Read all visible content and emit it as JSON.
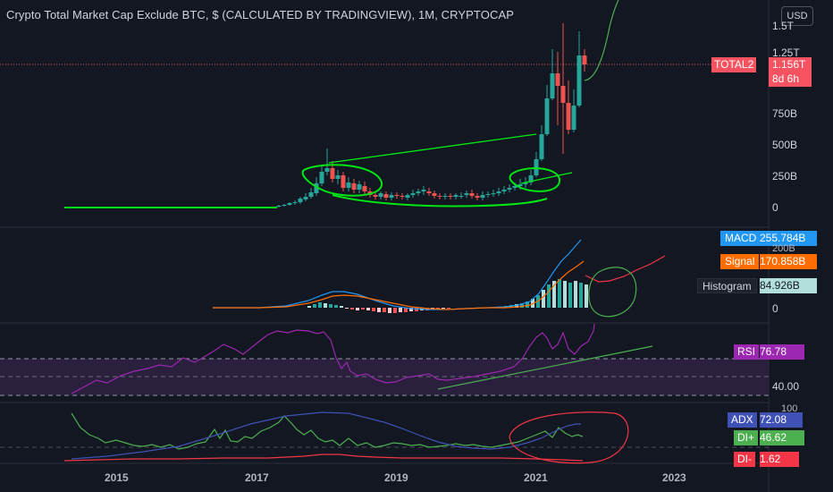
{
  "header": {
    "title": "Crypto Total Market Cap Exclude BTC, $ (CALCULATED BY TRADINGVIEW), 1M, CRYPTOCAP",
    "currency_button": "USD"
  },
  "price_axis": {
    "ticks": [
      "1.5T",
      "1.25T",
      "750B",
      "500B",
      "250B",
      "0"
    ]
  },
  "price_tag": {
    "symbol": "TOTAL2",
    "value": "1.156T",
    "countdown": "8d 6h",
    "color": "#f7525f"
  },
  "macd_panel": {
    "macd_label": "MACD",
    "macd_value": "255.784B",
    "signal_label": "Signal",
    "signal_value": "170.858B",
    "histogram_label": "Histogram",
    "histogram_value": "84.926B",
    "axis_ticks": [
      "200B",
      "0"
    ],
    "colors": {
      "macd": "#2196f3",
      "signal": "#ff6d00",
      "histogram_pos": "#26a69a",
      "histogram_neg": "#ef5350"
    }
  },
  "rsi_panel": {
    "label": "RSI",
    "value": "76.78",
    "axis_ticks": [
      "40.00"
    ],
    "color": "#9c27b0"
  },
  "adx_panel": {
    "adx_label": "ADX",
    "adx_value": "72.08",
    "di_plus_label": "DI+",
    "di_plus_value": "46.62",
    "di_minus_label": "DI-",
    "di_minus_value": "1.62",
    "axis_ticks": [
      "100"
    ],
    "colors": {
      "adx": "#3f51b5",
      "di_plus": "#4caf50",
      "di_minus": "#f23645"
    }
  },
  "time_axis": {
    "labels": [
      "2015",
      "2017",
      "2019",
      "2021",
      "2023"
    ]
  },
  "chart_data": [
    {
      "type": "candlestick",
      "title": "Crypto Total Market Cap Exclude BTC, $ (CALCULATED BY TRADINGVIEW), 1M, CRYPTOCAP",
      "ylabel": "",
      "ylim": [
        0,
        1500000000000
      ],
      "y_ticks": [
        "1.25T",
        "750B",
        "500B",
        "250B",
        "0"
      ],
      "x_ticks": [
        "2015",
        "2017",
        "2019",
        "2021",
        "2023"
      ],
      "last_value": "1.156T"
    },
    {
      "type": "line",
      "title": "",
      "series": [
        {
          "name": "MACD",
          "last": "255.784B"
        },
        {
          "name": "Signal",
          "last": "170.858B"
        },
        {
          "name": "Histogram",
          "last": "84.926B"
        }
      ]
    },
    {
      "type": "line",
      "title": "",
      "series": [
        {
          "name": "RSI",
          "last": 76.78
        }
      ]
    },
    {
      "type": "line",
      "title": "",
      "series": [
        {
          "name": "ADX",
          "last": 72.08
        },
        {
          "name": "DI+",
          "last": 46.62
        },
        {
          "name": "DI-",
          "last": 1.62
        }
      ]
    }
  ]
}
